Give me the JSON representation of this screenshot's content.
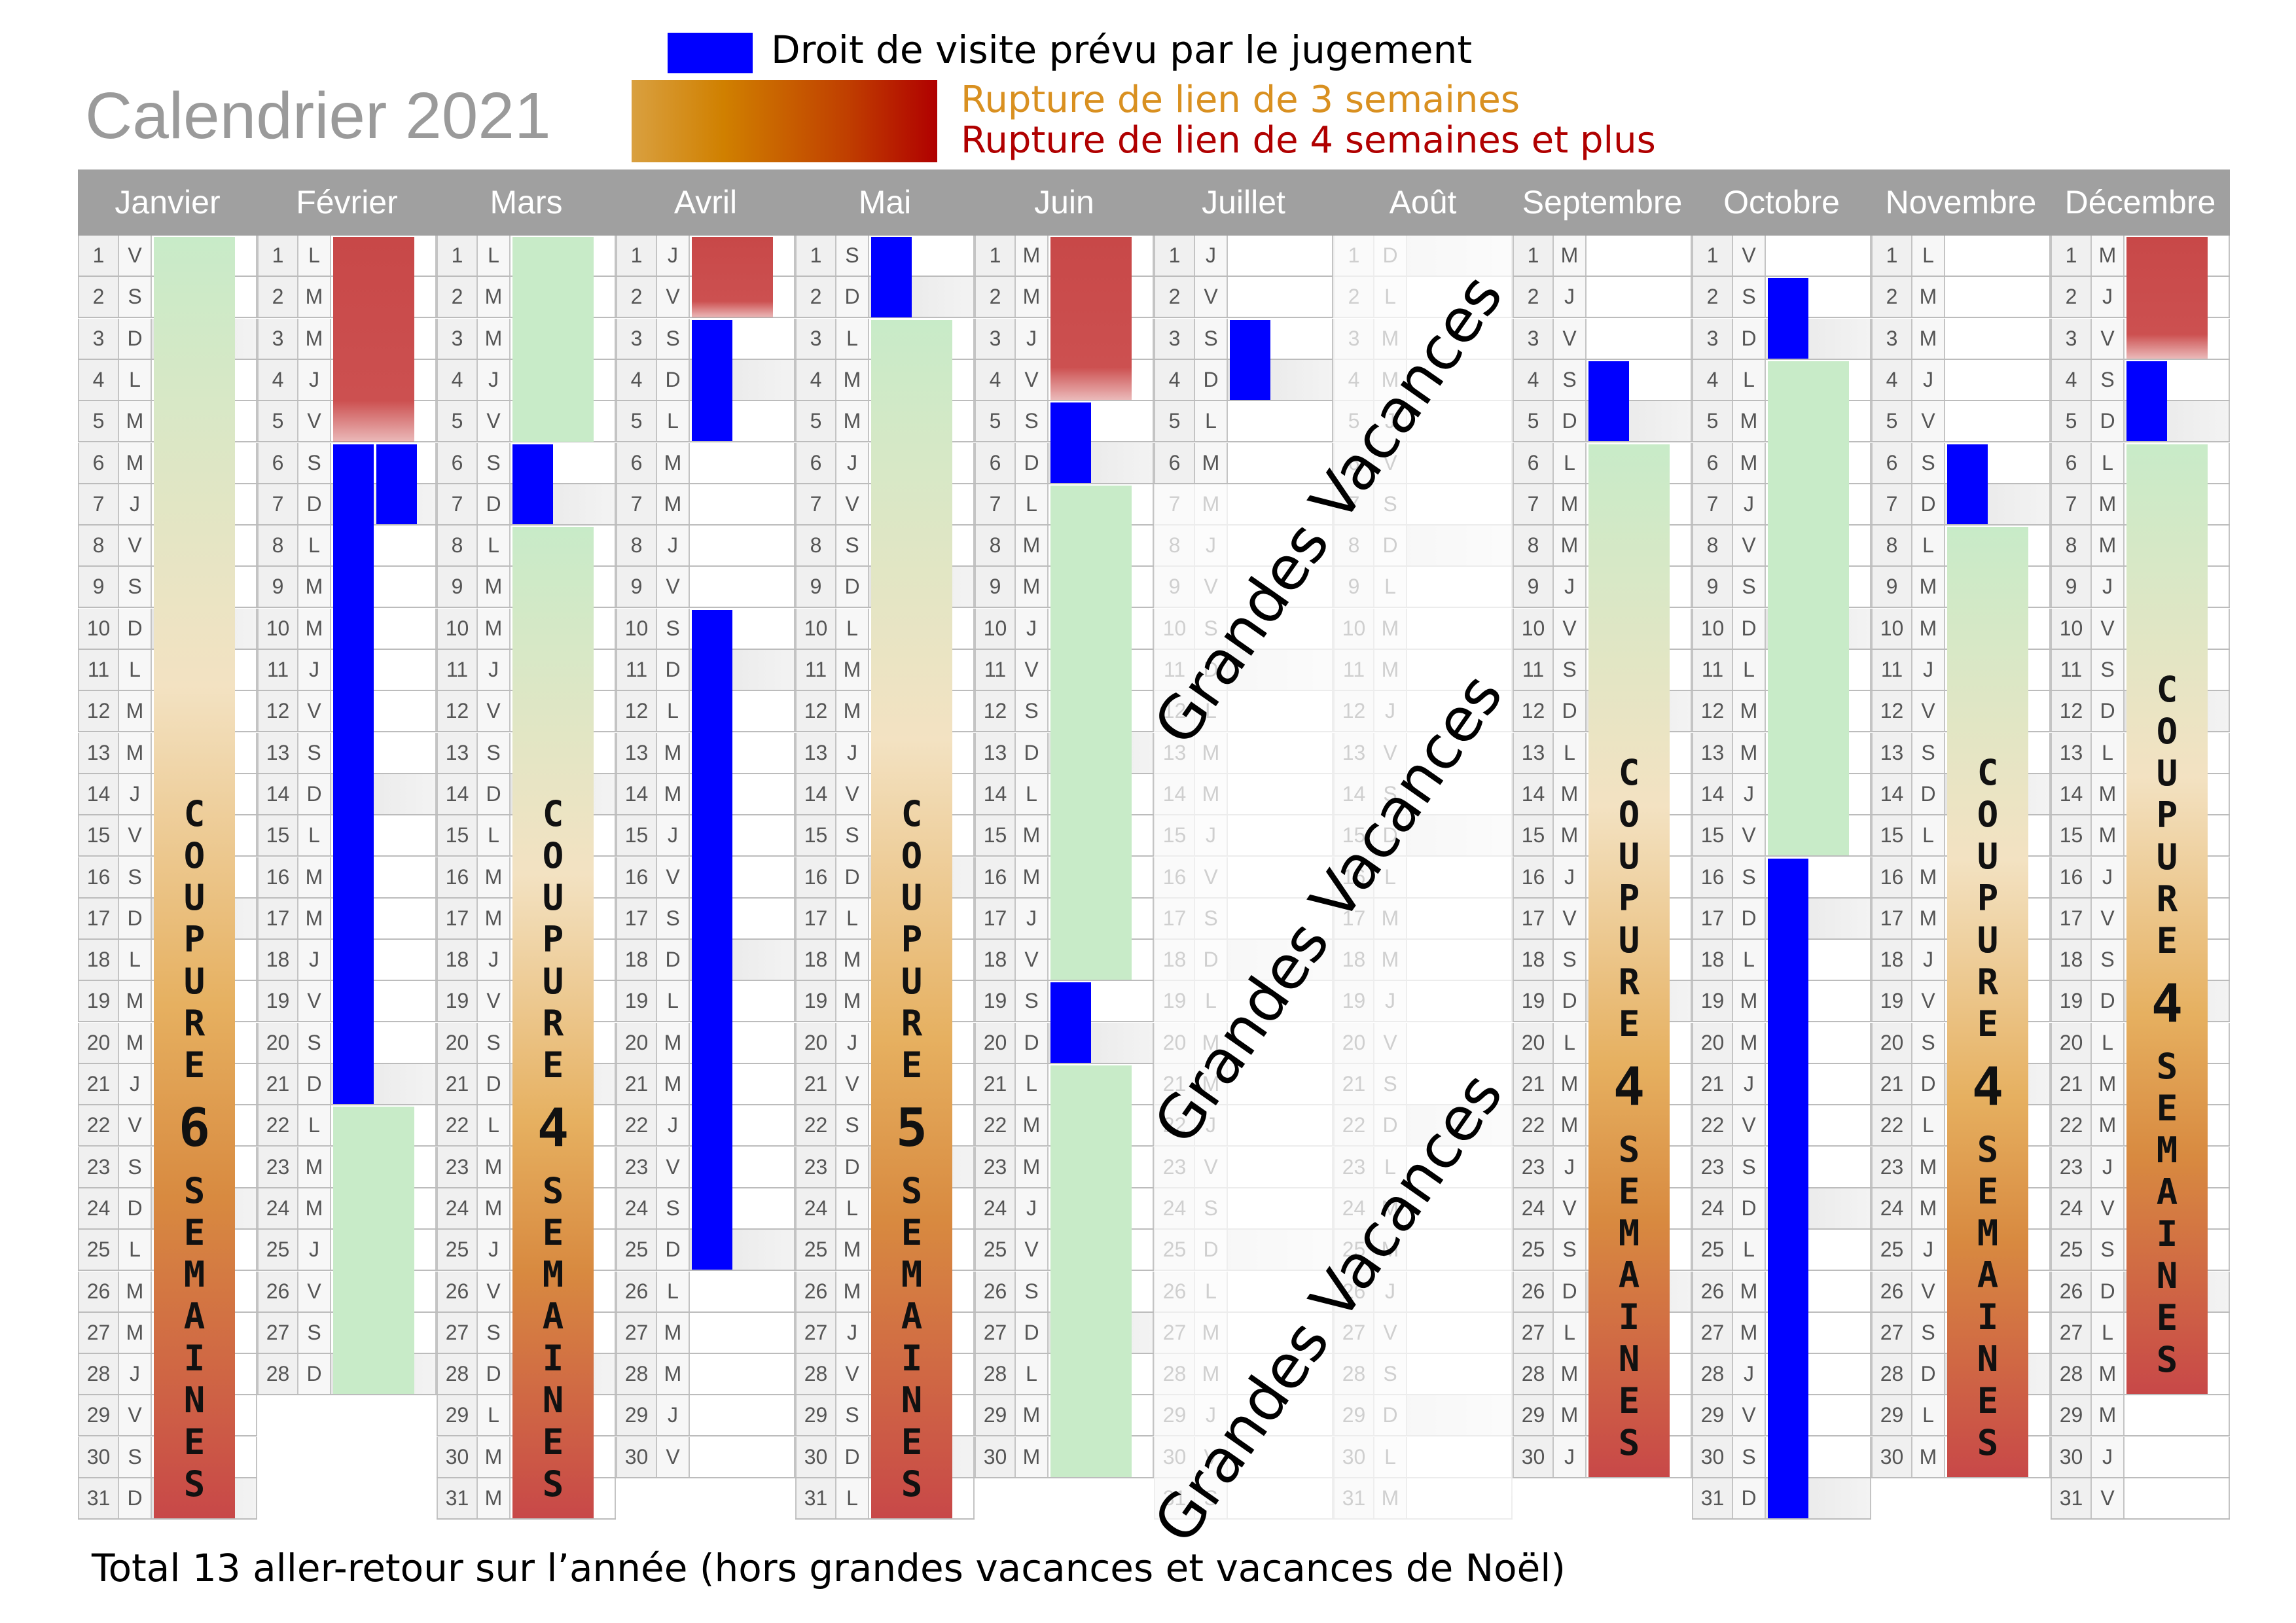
{
  "title": "Calendrier 2021",
  "legend": {
    "visit": "Droit de visite prévu par le jugement",
    "rupture3": "Rupture de lien de 3 semaines",
    "rupture4": "Rupture de lien de 4 semaines et plus",
    "colors": {
      "visit": "#0000ff",
      "rupture3": "#d99020",
      "rupture4": "#b00000",
      "normal": "#c8ebc8"
    }
  },
  "day_letters": [
    "L",
    "M",
    "M",
    "J",
    "V",
    "S",
    "D"
  ],
  "months": [
    {
      "name": "Janvier",
      "days": 31,
      "first_weekday": 4,
      "bars": [
        {
          "type": "coupure",
          "from": 1,
          "to": 31,
          "word1": "COUPURE",
          "count": "6",
          "word2": "SEMAINES"
        }
      ]
    },
    {
      "name": "Février",
      "days": 28,
      "first_weekday": 0,
      "bars": [
        {
          "type": "red",
          "from": 1,
          "to": 5
        },
        {
          "type": "blue",
          "from": 6,
          "to": 21
        },
        {
          "type": "blue",
          "from": 6,
          "to": 7,
          "col": 2
        },
        {
          "type": "green",
          "from": 22,
          "to": 28
        }
      ]
    },
    {
      "name": "Mars",
      "days": 31,
      "first_weekday": 0,
      "bars": [
        {
          "type": "green",
          "from": 1,
          "to": 5
        },
        {
          "type": "blue",
          "from": 6,
          "to": 7
        },
        {
          "type": "coupure",
          "from": 8,
          "to": 31,
          "word1": "COUPURE",
          "count": "4",
          "word2": "SEMAINES"
        }
      ]
    },
    {
      "name": "Avril",
      "days": 30,
      "first_weekday": 3,
      "bars": [
        {
          "type": "red",
          "from": 1,
          "to": 2
        },
        {
          "type": "blue",
          "from": 3,
          "to": 5
        },
        {
          "type": "blue",
          "from": 10,
          "to": 25
        }
      ]
    },
    {
      "name": "Mai",
      "days": 31,
      "first_weekday": 5,
      "bars": [
        {
          "type": "blue",
          "from": 1,
          "to": 2
        },
        {
          "type": "coupure",
          "from": 3,
          "to": 31,
          "word1": "COUPURE",
          "count": "5",
          "word2": "SEMAINES"
        }
      ]
    },
    {
      "name": "Juin",
      "days": 30,
      "first_weekday": 1,
      "bars": [
        {
          "type": "red",
          "from": 1,
          "to": 4
        },
        {
          "type": "blue",
          "from": 5,
          "to": 6
        },
        {
          "type": "green",
          "from": 7,
          "to": 18
        },
        {
          "type": "blue",
          "from": 19,
          "to": 20
        },
        {
          "type": "green",
          "from": 21,
          "to": 30
        }
      ]
    },
    {
      "name": "Juillet",
      "days": 31,
      "first_weekday": 3,
      "faded_from": 7,
      "bars": [
        {
          "type": "blue",
          "from": 3,
          "to": 4
        }
      ]
    },
    {
      "name": "Août",
      "days": 31,
      "first_weekday": 6,
      "faded_from": 1,
      "bars": []
    },
    {
      "name": "Septembre",
      "days": 30,
      "first_weekday": 2,
      "bars": [
        {
          "type": "blue",
          "from": 4,
          "to": 5
        },
        {
          "type": "coupure",
          "from": 6,
          "to": 30,
          "word1": "COUPURE",
          "count": "4",
          "word2": "SEMAINES"
        }
      ]
    },
    {
      "name": "Octobre",
      "days": 31,
      "first_weekday": 4,
      "bars": [
        {
          "type": "blue",
          "from": 2,
          "to": 3
        },
        {
          "type": "green",
          "from": 4,
          "to": 15
        },
        {
          "type": "blue",
          "from": 16,
          "to": 31
        }
      ]
    },
    {
      "name": "Novembre",
      "days": 30,
      "first_weekday": 0,
      "bars": [
        {
          "type": "blue",
          "from": 6,
          "to": 7
        },
        {
          "type": "coupure",
          "from": 8,
          "to": 30,
          "word1": "COUPURE",
          "count": "4",
          "word2": "SEMAINES"
        }
      ]
    },
    {
      "name": "Décembre",
      "days": 31,
      "first_weekday": 2,
      "bars": [
        {
          "type": "red",
          "from": 1,
          "to": 3
        },
        {
          "type": "blue",
          "from": 4,
          "to": 5
        },
        {
          "type": "coupure",
          "from": 6,
          "to": 28,
          "word1": "COUPURE",
          "count": "4",
          "word2": "SEMAINES"
        }
      ]
    }
  ],
  "vacation_label": "Grandes Vacances",
  "footer": "Total 13 aller-retour sur l’année (hors grandes vacances et vacances de Noël)"
}
